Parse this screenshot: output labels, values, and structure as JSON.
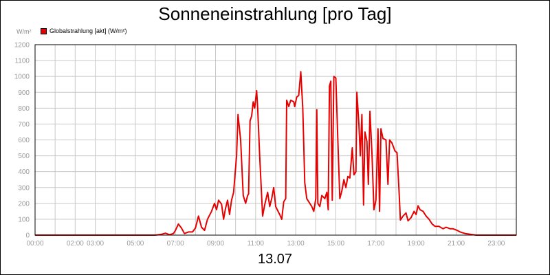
{
  "chart_data": {
    "type": "line",
    "title": "Sonneneinstrahlung [pro Tag]",
    "ylabel": "W/m²",
    "xcaption": "13.07",
    "ylim": [
      0,
      1200
    ],
    "xlim": [
      0,
      24
    ],
    "grid": true,
    "legend_position": "top-left",
    "yticks": [
      0,
      100,
      200,
      300,
      400,
      500,
      600,
      700,
      800,
      900,
      1000,
      1100,
      1200
    ],
    "xticks": [
      {
        "x": 0,
        "label": "00:00"
      },
      {
        "x": 2,
        "label": "02:00"
      },
      {
        "x": 3,
        "label": "03:00"
      },
      {
        "x": 5,
        "label": "05:00"
      },
      {
        "x": 7,
        "label": "07:00"
      },
      {
        "x": 9,
        "label": "09:00"
      },
      {
        "x": 11,
        "label": "11:00"
      },
      {
        "x": 13,
        "label": "13:00"
      },
      {
        "x": 15,
        "label": "15:00"
      },
      {
        "x": 17,
        "label": "17:00"
      },
      {
        "x": 19,
        "label": "19:00"
      },
      {
        "x": 21,
        "label": "21:00"
      },
      {
        "x": 23,
        "label": "23:00"
      }
    ],
    "series": [
      {
        "name": "Globalstrahlung [akt] (W/m²)",
        "color": "#e60000",
        "points": [
          [
            0,
            0
          ],
          [
            6,
            0
          ],
          [
            6.3,
            5
          ],
          [
            6.5,
            12
          ],
          [
            6.7,
            3
          ],
          [
            6.9,
            10
          ],
          [
            7.0,
            30
          ],
          [
            7.15,
            70
          ],
          [
            7.3,
            45
          ],
          [
            7.45,
            10
          ],
          [
            7.65,
            20
          ],
          [
            7.85,
            20
          ],
          [
            8.0,
            45
          ],
          [
            8.15,
            120
          ],
          [
            8.3,
            50
          ],
          [
            8.45,
            30
          ],
          [
            8.6,
            100
          ],
          [
            8.8,
            150
          ],
          [
            8.95,
            200
          ],
          [
            9.05,
            160
          ],
          [
            9.15,
            220
          ],
          [
            9.3,
            195
          ],
          [
            9.4,
            100
          ],
          [
            9.5,
            170
          ],
          [
            9.6,
            220
          ],
          [
            9.7,
            130
          ],
          [
            9.8,
            220
          ],
          [
            9.9,
            270
          ],
          [
            10.05,
            500
          ],
          [
            10.12,
            760
          ],
          [
            10.25,
            600
          ],
          [
            10.38,
            250
          ],
          [
            10.5,
            200
          ],
          [
            10.6,
            250
          ],
          [
            10.65,
            260
          ],
          [
            10.72,
            720
          ],
          [
            10.8,
            750
          ],
          [
            10.88,
            840
          ],
          [
            10.95,
            800
          ],
          [
            11.05,
            910
          ],
          [
            11.1,
            800
          ],
          [
            11.2,
            500
          ],
          [
            11.35,
            120
          ],
          [
            11.45,
            190
          ],
          [
            11.6,
            270
          ],
          [
            11.7,
            180
          ],
          [
            11.8,
            230
          ],
          [
            11.9,
            300
          ],
          [
            12.0,
            180
          ],
          [
            12.2,
            130
          ],
          [
            12.3,
            100
          ],
          [
            12.4,
            210
          ],
          [
            12.5,
            230
          ],
          [
            12.55,
            850
          ],
          [
            12.65,
            810
          ],
          [
            12.75,
            850
          ],
          [
            12.9,
            840
          ],
          [
            12.95,
            810
          ],
          [
            13.05,
            870
          ],
          [
            13.15,
            880
          ],
          [
            13.25,
            1030
          ],
          [
            13.35,
            800
          ],
          [
            13.45,
            330
          ],
          [
            13.55,
            230
          ],
          [
            13.7,
            200
          ],
          [
            13.8,
            180
          ],
          [
            13.9,
            150
          ],
          [
            14.0,
            230
          ],
          [
            14.05,
            790
          ],
          [
            14.1,
            200
          ],
          [
            14.2,
            180
          ],
          [
            14.3,
            250
          ],
          [
            14.45,
            230
          ],
          [
            14.55,
            270
          ],
          [
            14.62,
            160
          ],
          [
            14.68,
            940
          ],
          [
            14.75,
            970
          ],
          [
            14.82,
            220
          ],
          [
            14.9,
            1000
          ],
          [
            15.0,
            990
          ],
          [
            15.1,
            600
          ],
          [
            15.2,
            230
          ],
          [
            15.3,
            280
          ],
          [
            15.4,
            350
          ],
          [
            15.5,
            300
          ],
          [
            15.6,
            370
          ],
          [
            15.7,
            360
          ],
          [
            15.82,
            550
          ],
          [
            15.9,
            380
          ],
          [
            16.0,
            400
          ],
          [
            16.05,
            900
          ],
          [
            16.15,
            700
          ],
          [
            16.22,
            500
          ],
          [
            16.3,
            760
          ],
          [
            16.38,
            190
          ],
          [
            16.45,
            650
          ],
          [
            16.55,
            590
          ],
          [
            16.62,
            320
          ],
          [
            16.7,
            780
          ],
          [
            16.8,
            520
          ],
          [
            16.9,
            160
          ],
          [
            17.0,
            220
          ],
          [
            17.1,
            670
          ],
          [
            17.18,
            150
          ],
          [
            17.25,
            670
          ],
          [
            17.35,
            610
          ],
          [
            17.5,
            600
          ],
          [
            17.6,
            320
          ],
          [
            17.68,
            600
          ],
          [
            17.8,
            580
          ],
          [
            17.95,
            530
          ],
          [
            18.05,
            520
          ],
          [
            18.15,
            280
          ],
          [
            18.22,
            95
          ],
          [
            18.35,
            120
          ],
          [
            18.5,
            140
          ],
          [
            18.6,
            90
          ],
          [
            18.75,
            110
          ],
          [
            18.9,
            150
          ],
          [
            19.0,
            130
          ],
          [
            19.1,
            185
          ],
          [
            19.2,
            160
          ],
          [
            19.35,
            150
          ],
          [
            19.5,
            120
          ],
          [
            19.65,
            100
          ],
          [
            19.8,
            70
          ],
          [
            19.95,
            55
          ],
          [
            20.15,
            55
          ],
          [
            20.35,
            40
          ],
          [
            20.5,
            50
          ],
          [
            20.7,
            40
          ],
          [
            20.85,
            40
          ],
          [
            21.05,
            30
          ],
          [
            21.2,
            20
          ],
          [
            21.45,
            10
          ],
          [
            21.7,
            5
          ],
          [
            22.0,
            0
          ],
          [
            24,
            0
          ]
        ]
      }
    ]
  }
}
